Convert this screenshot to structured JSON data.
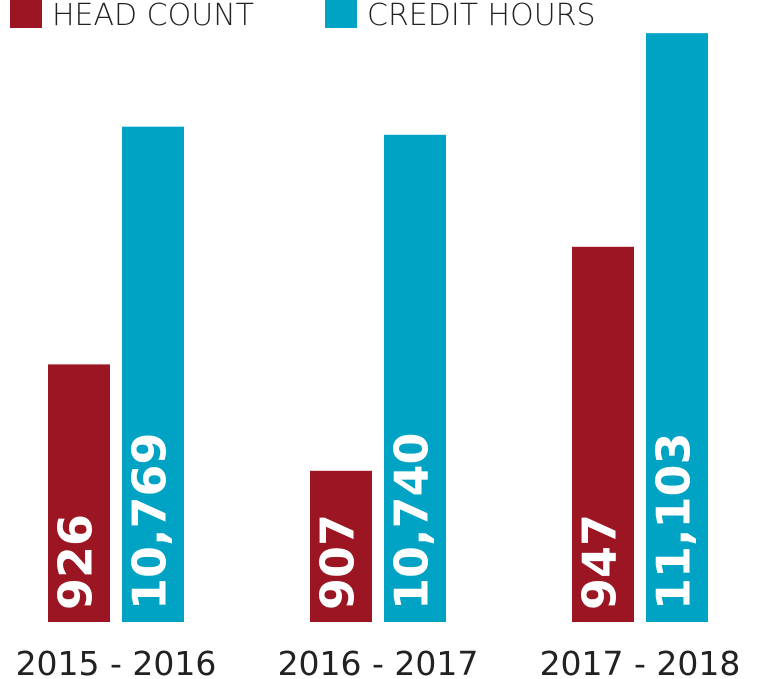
{
  "chart_data": {
    "type": "bar",
    "categories": [
      "2015 - 2016",
      "2016 - 2017",
      "2017 - 2018"
    ],
    "series": [
      {
        "name": "HEAD COUNT",
        "color": "#9b1522",
        "values": [
          926,
          907,
          947
        ]
      },
      {
        "name": "CREDIT HOURS",
        "color": "#00a3c4",
        "axis": "y2",
        "values": [
          10769,
          10740,
          11103
        ],
        "value_labels": [
          "10,769",
          "10,740",
          "11,103"
        ]
      }
    ],
    "ylim": [
      880,
      990
    ],
    "y2lim": [
      9000,
      11200
    ],
    "legend": "top-left"
  }
}
